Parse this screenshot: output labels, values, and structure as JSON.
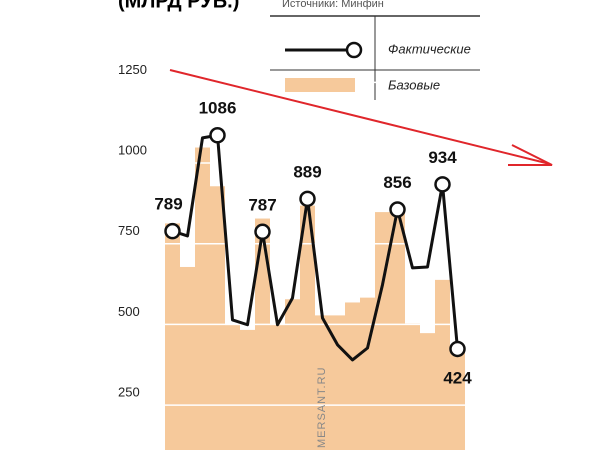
{
  "chart_data": {
    "type": "combo",
    "title": "(МЛРД РУБ.)",
    "subtitle": "Источники: Минфин",
    "watermark": "MERSANT.RU",
    "ylim": [
      111,
      1505
    ],
    "yticks": [
      250,
      500,
      750,
      1000,
      1250
    ],
    "grid": true,
    "series": [
      {
        "name": "Фактические",
        "type": "line",
        "color": "#111111",
        "values": [
          789,
          774,
          1078,
          1086,
          514,
          499,
          787,
          499,
          582,
          889,
          520,
          437,
          390,
          427,
          623,
          856,
          675,
          678,
          934,
          424
        ],
        "markers": [
          0,
          3,
          6,
          9,
          15,
          18,
          19
        ]
      },
      {
        "name": "Базовые",
        "type": "bar",
        "color": "#f6c99b",
        "values": [
          813,
          678,
          1048,
          928,
          498,
          483,
          828,
          498,
          578,
          868,
          528,
          528,
          568,
          583,
          848,
          848,
          503,
          473,
          638,
          423
        ]
      }
    ],
    "trend_color": "#e0262b"
  }
}
